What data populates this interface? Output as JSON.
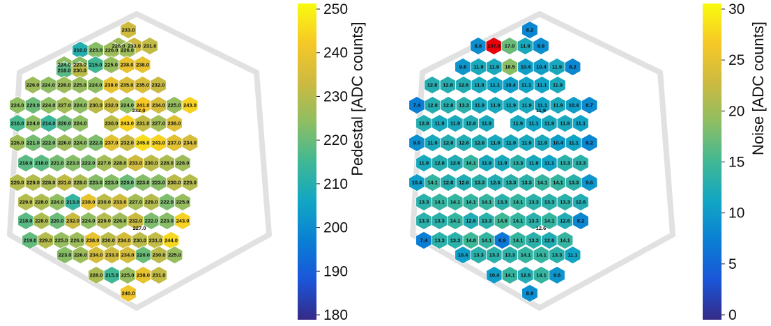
{
  "chart_data": [
    {
      "type": "heatmap",
      "colorbar": {
        "label": "Pedestal [ADC counts]",
        "range": [
          180,
          250
        ],
        "ticks": [
          180,
          190,
          200,
          210,
          220,
          230,
          240,
          250
        ],
        "colormap": [
          "#352a87",
          "#1b55d8",
          "#0a7fd4",
          "#12a6c4",
          "#40b894",
          "#8ebe63",
          "#cdba40",
          "#f6c827",
          "#f9fb0e"
        ]
      },
      "grid_center_value": "232.0",
      "rows": [
        [
          "233.0"
        ],
        [
          "226.0",
          "233.0",
          "231.0"
        ],
        [
          "210.0",
          "223.0",
          "226.0",
          "226.0"
        ],
        [
          "224.0",
          "223.0",
          "215.0",
          "225.0",
          "238.0",
          "238.0"
        ],
        [
          "218.0",
          "230.0"
        ],
        [
          "226.0",
          "224.0",
          "226.0",
          "225.0",
          "224.0",
          "238.0",
          "235.0",
          "235.0",
          "232.0"
        ],
        [
          "224.0",
          "220.0",
          "224.0",
          "227.0",
          "224.0",
          "230.0",
          "232.0",
          "224.0",
          "241.0",
          "234.0",
          "225.0",
          "243.0"
        ],
        [
          "216.0",
          "224.0",
          "214.0",
          "220.0",
          "224.0",
          "",
          "230.0",
          "243.0",
          "231.0",
          "227.0",
          "236.0"
        ],
        [
          "226.0",
          "221.0",
          "222.0",
          "226.0",
          "224.0",
          "222.0",
          "237.0",
          "232.0",
          "245.0",
          "243.0",
          "237.0",
          "234.0"
        ],
        [
          "218.0",
          "218.0",
          "221.0",
          "223.0",
          "222.0",
          "227.0",
          "228.0",
          "233.0",
          "230.0",
          "228.0",
          "226.0"
        ],
        [
          "229.0",
          "229.0",
          "228.0",
          "231.0",
          "228.0",
          "223.0",
          "223.0",
          "220.0",
          "223.0",
          "223.0",
          "230.0",
          "229.0"
        ],
        [
          "229.0",
          "228.0",
          "224.0",
          "213.0",
          "238.0",
          "230.0",
          "233.0",
          "227.0",
          "229.0",
          "222.0",
          "225.0"
        ],
        [
          "218.0",
          "228.0",
          "220.0",
          "232.0",
          "224.0",
          "229.0",
          "226.0",
          "232.0",
          "222.0",
          "223.0",
          "243.0"
        ],
        [
          "219.0",
          "229.0",
          "225.0",
          "226.0",
          "238.0",
          "230.0",
          "234.0",
          "230.0",
          "231.0",
          "244.0"
        ],
        [
          "223.0",
          "226.0",
          "234.0",
          "233.0",
          "234.0",
          "220.0",
          "230.0",
          "225.0"
        ],
        [
          "228.0",
          "215.0",
          "225.0",
          "238.0",
          "231.0"
        ],
        [
          "240.0"
        ]
      ],
      "lone_labels": [
        "227.0"
      ]
    },
    {
      "type": "heatmap",
      "colorbar": {
        "label": "Noise [ADC counts]",
        "range": [
          0,
          30
        ],
        "ticks": [
          0,
          5,
          10,
          15,
          20,
          25,
          30
        ],
        "colormap": [
          "#352a87",
          "#1b55d8",
          "#0a7fd4",
          "#12a6c4",
          "#40b894",
          "#8ebe63",
          "#cdba40",
          "#f6c827",
          "#f9fb0e"
        ]
      },
      "grid_center_value": "11.9",
      "rows": [
        [
          "8.2"
        ],
        [
          "8.8",
          "137.9",
          "17.0",
          "11.9",
          "8.9"
        ],
        [
          "9.6",
          "11.9",
          "11.9",
          "18.5",
          "10.4",
          "10.4",
          "11.9",
          "8.2"
        ],
        [
          "12.8",
          "12.8",
          "12.6",
          "11.9",
          "11.1",
          "10.4",
          "11.1",
          "11.1",
          "11.9"
        ],
        [
          "7.4",
          "12.8",
          "12.8",
          "13.3",
          "11.9",
          "11.9",
          "11.9",
          "11.9",
          "11.1",
          "11.9",
          "10.4",
          "8.7"
        ],
        [
          "12.8",
          "11.9",
          "11.9",
          "12.6",
          "11.9",
          "",
          "11.9",
          "11.1",
          "11.9",
          "11.9",
          "11.1"
        ],
        [
          "9.0",
          "11.9",
          "12.8",
          "12.6",
          "12.6",
          "11.9",
          "11.9",
          "11.9",
          "11.9",
          "10.4",
          "11.1",
          "8.2"
        ],
        [
          "11.9",
          "12.8",
          "12.6",
          "14.1",
          "11.9",
          "11.9",
          "13.3",
          "11.9",
          "11.1",
          "13.3",
          "13.3"
        ],
        [
          "10.4",
          "14.1",
          "12.8",
          "12.6",
          "13.3",
          "12.6",
          "13.3",
          "13.3",
          "14.1",
          "14.1",
          "13.3",
          "9.6"
        ],
        [
          "13.3",
          "14.1",
          "14.1",
          "14.1",
          "14.1",
          "13.3",
          "14.1",
          "13.3",
          "13.3",
          "13.3",
          "12.6"
        ],
        [
          "13.3",
          "13.3",
          "14.1",
          "12.6",
          "13.3",
          "14.8",
          "14.1",
          "13.3",
          "14.1",
          "12.6",
          "8.2"
        ],
        [
          "7.4",
          "13.3",
          "13.3",
          "14.8",
          "14.1",
          "6.9",
          "14.1",
          "13.3",
          "12.6",
          "14.1"
        ],
        [
          "10.4",
          "13.3",
          "13.3",
          "13.3",
          "14.1",
          "14.1",
          "13.3",
          "11.1"
        ],
        [
          "10.4",
          "14.1",
          "12.6",
          "14.1",
          "9.6"
        ],
        [
          "8.9"
        ]
      ],
      "lone_labels": [
        "12.6"
      ]
    }
  ]
}
